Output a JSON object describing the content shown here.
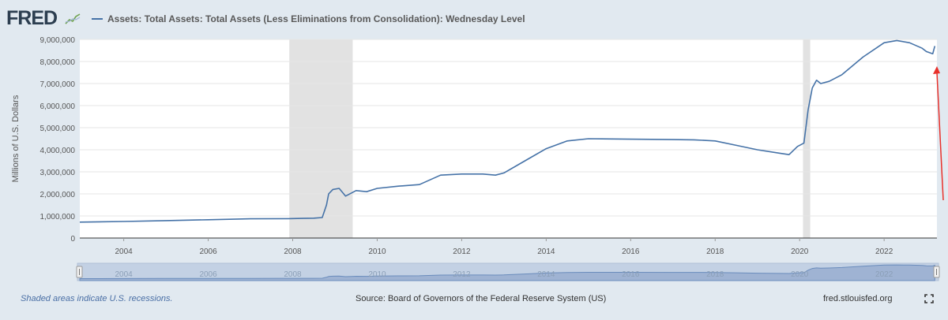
{
  "header": {
    "logo_text": "FRED",
    "logo_icon": "chart-line-icon",
    "legend_label": "Assets: Total Assets: Total Assets (Less Eliminations from Consolidation): Wednesday Level"
  },
  "footer": {
    "recession_note": "Shaded areas indicate U.S. recessions.",
    "source": "Source: Board of Governors of the Federal Reserve System (US)",
    "site": "fred.stlouisfed.org",
    "fullscreen_icon": "fullscreen-icon"
  },
  "annotation": {
    "arrow_color": "#e8312b",
    "arrow_icon": "red-arrow-icon"
  },
  "colors": {
    "series": "#4572a7",
    "recession": "#e2e2e2",
    "background": "#e1e9f0",
    "plot_background": "#ffffff",
    "navigator_fill": "#9fb3d3"
  },
  "chart_data": {
    "type": "line",
    "title": "",
    "ylabel": "Millions of U.S. Dollars",
    "xlabel": "",
    "xlim": [
      2002.96,
      2023.25
    ],
    "ylim": [
      0,
      9000000
    ],
    "y_ticks": [
      0,
      1000000,
      2000000,
      3000000,
      4000000,
      5000000,
      6000000,
      7000000,
      8000000,
      9000000
    ],
    "y_tick_labels": [
      "0",
      "1,000,000",
      "2,000,000",
      "3,000,000",
      "4,000,000",
      "5,000,000",
      "6,000,000",
      "7,000,000",
      "8,000,000",
      "9,000,000"
    ],
    "x_ticks": [
      2004,
      2006,
      2008,
      2010,
      2012,
      2014,
      2016,
      2018,
      2020,
      2022
    ],
    "x_tick_labels": [
      "2004",
      "2006",
      "2008",
      "2010",
      "2012",
      "2014",
      "2016",
      "2018",
      "2020",
      "2022"
    ],
    "recessions": [
      [
        2007.92,
        2009.42
      ],
      [
        2020.08,
        2020.25
      ]
    ],
    "grid": "horizontal",
    "legend": "top",
    "series": [
      {
        "name": "Assets: Total Assets: Total Assets (Less Eliminations from Consolidation): Wednesday Level",
        "x": [
          2002.96,
          2004.0,
          2005.0,
          2006.0,
          2007.0,
          2007.9,
          2008.5,
          2008.7,
          2008.8,
          2008.85,
          2008.95,
          2009.1,
          2009.25,
          2009.45,
          2009.5,
          2009.75,
          2010.0,
          2010.5,
          2011.0,
          2011.5,
          2012.0,
          2012.5,
          2012.8,
          2013.0,
          2013.5,
          2014.0,
          2014.5,
          2015.0,
          2016.0,
          2017.0,
          2017.5,
          2018.0,
          2018.5,
          2019.0,
          2019.5,
          2019.75,
          2019.95,
          2020.1,
          2020.2,
          2020.3,
          2020.4,
          2020.5,
          2020.7,
          2021.0,
          2021.5,
          2022.0,
          2022.3,
          2022.6,
          2022.9,
          2023.0,
          2023.15,
          2023.2
        ],
        "values": [
          720000,
          750000,
          790000,
          830000,
          870000,
          880000,
          900000,
          930000,
          1500000,
          2000000,
          2200000,
          2250000,
          1900000,
          2100000,
          2150000,
          2100000,
          2250000,
          2350000,
          2420000,
          2850000,
          2900000,
          2900000,
          2850000,
          2950000,
          3500000,
          4050000,
          4400000,
          4500000,
          4480000,
          4460000,
          4450000,
          4400000,
          4200000,
          4000000,
          3850000,
          3780000,
          4150000,
          4300000,
          5800000,
          6800000,
          7150000,
          7000000,
          7100000,
          7400000,
          8200000,
          8850000,
          8950000,
          8850000,
          8600000,
          8450000,
          8350000,
          8700000
        ]
      }
    ]
  }
}
